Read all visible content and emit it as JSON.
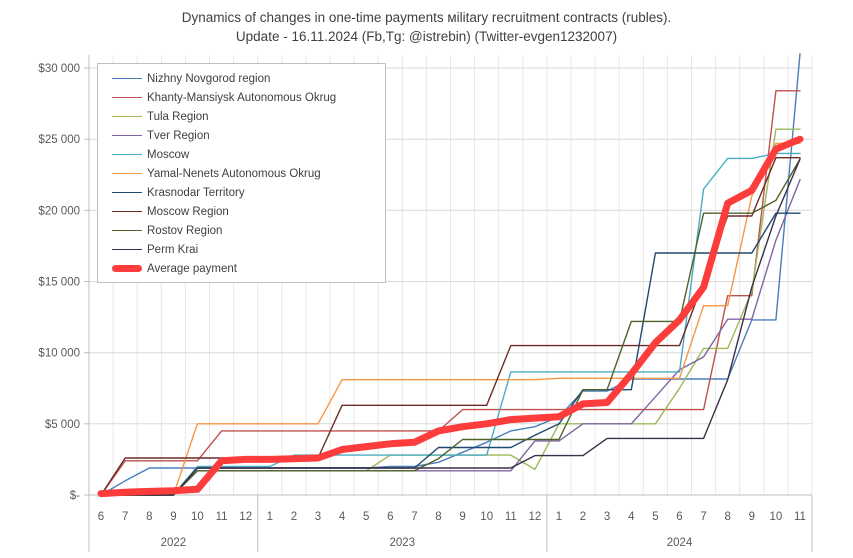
{
  "title": {
    "line1": "Dynamics of changes in one-time payments мilitary recruitment contracts (rubles).",
    "line2": "Update - 16.11.2024 (Fb,Tg: @istrebin) (Twitter-evgen1232007)"
  },
  "colors": {
    "background": "#ffffff",
    "grid_h": "#d9d9d9",
    "grid_v": "#e8e8e8",
    "axis": "#bfbfbf",
    "tick_text": "#595959",
    "title_text": "#404040"
  },
  "chart_data": {
    "type": "line",
    "title": "Dynamics of changes in one-time payments мilitary recruitment contracts (rubles). Update - 16.11.2024 (Fb,Tg: @istrebin) (Twitter-evgen1232007)",
    "xlabel": "",
    "ylabel": "",
    "grid": true,
    "legend_position": "top-left-inside",
    "ylim": [
      0,
      31500
    ],
    "y_ticks": [
      {
        "label": "$-",
        "value": 0
      },
      {
        "label": "$5 000",
        "value": 5000
      },
      {
        "label": "$10 000",
        "value": 10000
      },
      {
        "label": "$15 000",
        "value": 15000
      },
      {
        "label": "$20 000",
        "value": 20000
      },
      {
        "label": "$25 000",
        "value": 25000
      },
      {
        "label": "$30 000",
        "value": 30000
      }
    ],
    "x_groups": [
      {
        "year": "2022",
        "months": [
          "6",
          "7",
          "8",
          "9",
          "10",
          "11",
          "12"
        ]
      },
      {
        "year": "2023",
        "months": [
          "1",
          "2",
          "3",
          "4",
          "5",
          "6",
          "7",
          "8",
          "9",
          "10",
          "11",
          "12"
        ]
      },
      {
        "year": "2024",
        "months": [
          "1",
          "2",
          "3",
          "4",
          "5",
          "6",
          "7",
          "8",
          "9",
          "10",
          "11"
        ]
      }
    ],
    "series": [
      {
        "name": "Nizhny Novgorod region",
        "color": "#4a7ebb",
        "thick": false,
        "values": [
          0,
          1000,
          1900,
          1900,
          1900,
          1900,
          1900,
          1900,
          1900,
          1900,
          1900,
          1900,
          2000,
          2000,
          2300,
          3000,
          3700,
          4500,
          4800,
          5500,
          7300,
          7300,
          8150,
          8150,
          8150,
          8150,
          8150,
          12300,
          12300,
          31000
        ]
      },
      {
        "name": "Khanty-Mansiysk Autonomous Okrug",
        "color": "#c0504d",
        "thick": false,
        "values": [
          0,
          2400,
          2400,
          2400,
          2400,
          4500,
          4500,
          4500,
          4500,
          4500,
          4500,
          4500,
          4500,
          4500,
          4500,
          6000,
          6000,
          6000,
          6000,
          6000,
          6000,
          6000,
          6000,
          6000,
          6000,
          6000,
          14000,
          14000,
          28400,
          28400
        ]
      },
      {
        "name": "Tula Region",
        "color": "#9bbb59",
        "thick": false,
        "values": [
          0,
          0,
          0,
          0,
          1700,
          1700,
          1700,
          1700,
          1700,
          1700,
          1700,
          1700,
          2800,
          2800,
          2800,
          2800,
          2800,
          2800,
          1800,
          5000,
          5000,
          5000,
          5000,
          5000,
          7500,
          10300,
          10300,
          14300,
          25700,
          25700
        ]
      },
      {
        "name": "Tver Region",
        "color": "#8064a2",
        "thick": false,
        "values": [
          0,
          0,
          0,
          0,
          1700,
          1700,
          1700,
          1700,
          1700,
          1700,
          1700,
          1700,
          1700,
          1700,
          1700,
          1700,
          1700,
          1700,
          3800,
          3800,
          5000,
          5000,
          5000,
          6900,
          8800,
          9700,
          12350,
          12350,
          17900,
          22150
        ]
      },
      {
        "name": "Moscow",
        "color": "#4aacc5",
        "thick": false,
        "values": [
          0,
          0,
          0,
          0,
          2000,
          2000,
          2000,
          2000,
          2800,
          2800,
          2800,
          2800,
          2800,
          2800,
          2800,
          2800,
          2800,
          8650,
          8650,
          8650,
          8650,
          8650,
          8650,
          8650,
          8650,
          21500,
          23650,
          23650,
          24000,
          24000
        ]
      },
      {
        "name": "Yamal-Nenets Autonomous Okrug",
        "color": "#f79646",
        "thick": false,
        "values": [
          0,
          0,
          0,
          0,
          5000,
          5000,
          5000,
          5000,
          5000,
          5000,
          8100,
          8100,
          8100,
          8100,
          8100,
          8100,
          8100,
          8100,
          8100,
          8200,
          8200,
          8200,
          8200,
          8200,
          8200,
          13300,
          13300,
          21000,
          24700,
          24700
        ]
      },
      {
        "name": "Krasnodar Territory",
        "color": "#1f4970",
        "thick": false,
        "values": [
          0,
          0,
          0,
          0,
          1900,
          1900,
          1900,
          1900,
          1900,
          1900,
          1900,
          1900,
          1900,
          1900,
          3340,
          3340,
          3340,
          3340,
          4200,
          5000,
          7400,
          7400,
          7400,
          17000,
          17000,
          17000,
          17000,
          17000,
          19800,
          19800
        ]
      },
      {
        "name": "Moscow Region",
        "color": "#6b2c28",
        "thick": false,
        "values": [
          0,
          2600,
          2600,
          2600,
          2600,
          2600,
          2600,
          2600,
          2600,
          2600,
          6300,
          6300,
          6300,
          6300,
          6300,
          6300,
          6300,
          10500,
          10500,
          10500,
          10500,
          10500,
          10500,
          10500,
          10500,
          15000,
          19600,
          19600,
          23700,
          23700
        ]
      },
      {
        "name": "Rostov Region",
        "color": "#4f6228",
        "thick": false,
        "values": [
          0,
          0,
          0,
          0,
          1700,
          1700,
          1700,
          1700,
          1700,
          1700,
          1700,
          1700,
          1700,
          1700,
          2560,
          3900,
          3900,
          3900,
          3900,
          3900,
          7400,
          7400,
          12200,
          12200,
          12200,
          19800,
          19800,
          19800,
          20700,
          23600
        ]
      },
      {
        "name": "Perm Krai",
        "color": "#3b3048",
        "thick": false,
        "values": [
          0,
          0,
          0,
          0,
          1900,
          1900,
          1900,
          1900,
          1900,
          1900,
          1900,
          1900,
          1900,
          1900,
          1900,
          1900,
          1900,
          1900,
          2770,
          2770,
          2770,
          3980,
          3980,
          3980,
          3980,
          3980,
          8100,
          14600,
          19600,
          23600
        ]
      },
      {
        "name": "Average payment",
        "color": "#fc3d3b",
        "thick": true,
        "values": [
          100,
          200,
          250,
          300,
          400,
          2400,
          2500,
          2500,
          2550,
          2600,
          3200,
          3400,
          3600,
          3700,
          4500,
          4800,
          5000,
          5300,
          5400,
          5500,
          6400,
          6500,
          8500,
          10700,
          12300,
          14600,
          20500,
          21400,
          24300,
          25000
        ]
      }
    ]
  }
}
